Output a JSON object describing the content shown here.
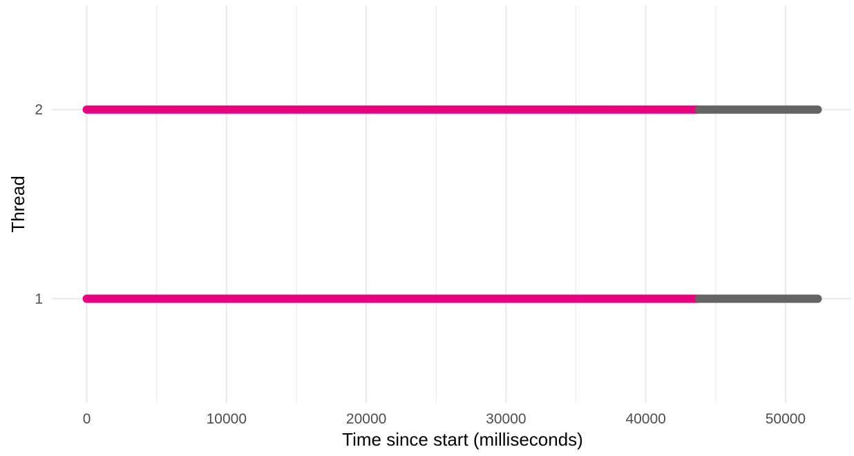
{
  "chart_data": {
    "type": "line",
    "title": "",
    "xlabel": "Time since start (milliseconds)",
    "ylabel": "Thread",
    "xlim": [
      -2500,
      54700
    ],
    "ylim": [
      0.45,
      2.55
    ],
    "x_ticks": [
      0,
      10000,
      20000,
      30000,
      40000,
      50000
    ],
    "x_tick_labels": [
      "0",
      "10000",
      "20000",
      "30000",
      "40000",
      "50000"
    ],
    "x_minor_ticks": [
      5000,
      15000,
      25000,
      35000,
      45000
    ],
    "y_ticks": [
      1,
      2
    ],
    "y_tick_labels": [
      "1",
      "2"
    ],
    "grid": true,
    "legend": "none",
    "series": [
      {
        "thread": 1,
        "segments": [
          {
            "start": 0,
            "end": 43800,
            "color": "#e6007e"
          },
          {
            "start": 43800,
            "end": 52300,
            "color": "#646464"
          }
        ]
      },
      {
        "thread": 2,
        "segments": [
          {
            "start": 0,
            "end": 43800,
            "color": "#e6007e"
          },
          {
            "start": 43800,
            "end": 52300,
            "color": "#646464"
          }
        ]
      }
    ]
  }
}
